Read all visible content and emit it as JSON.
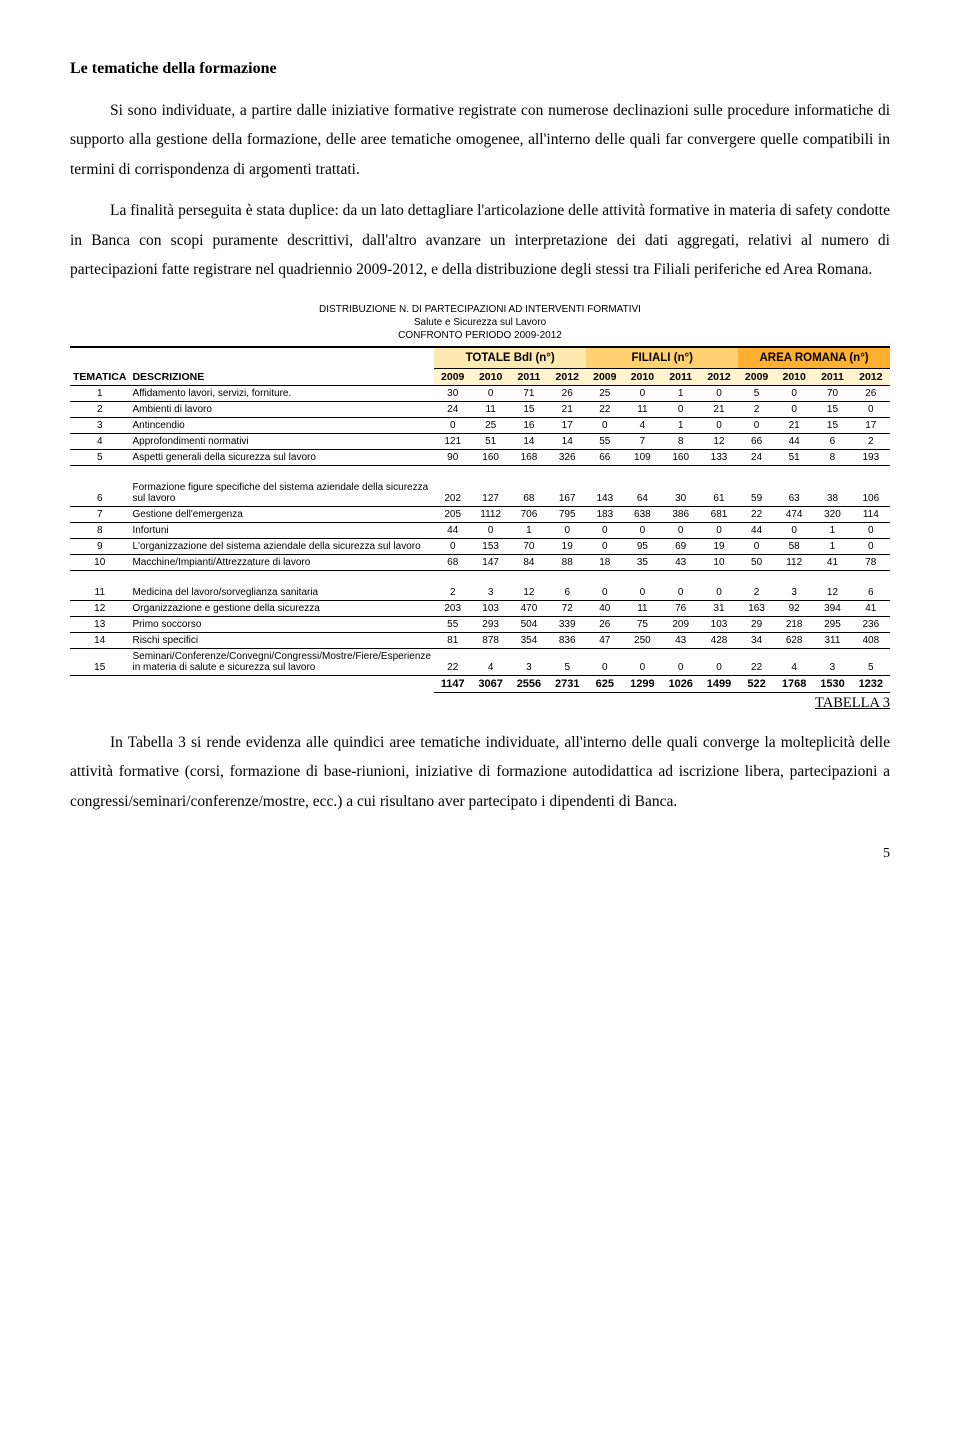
{
  "section_title": "Le tematiche della formazione",
  "para1": "Si sono individuate, a partire dalle iniziative formative registrate con numerose declinazioni sulle procedure informatiche di supporto alla gestione della formazione, delle aree tematiche omogenee, all'interno delle quali far convergere quelle compatibili in termini di corrispondenza di argomenti trattati.",
  "para2": "La finalità perseguita è stata duplice: da un lato dettagliare l'articolazione delle attività formative in materia di safety condotte in Banca con scopi puramente descrittivi, dall'altro avanzare un interpretazione dei dati aggregati, relativi al numero di partecipazioni fatte registrare nel quadriennio 2009-2012, e della distribuzione degli stessi tra Filiali periferiche ed Area Romana.",
  "caption_line1": "DISTRIBUZIONE N. DI PARTECIPAZIONI AD INTERVENTI FORMATIVI",
  "caption_line2": "Salute e Sicurezza sul Lavoro",
  "caption_line3": "CONFRONTO PERIODO 2009-2012",
  "group_headers": [
    "TOTALE BdI (n°)",
    "FILIALI (n°)",
    "AREA ROMANA (n°)"
  ],
  "col_tematica": "TEMATICA",
  "col_descrizione": "DESCRIZIONE",
  "years": [
    "2009",
    "2010",
    "2011",
    "2012"
  ],
  "colors": {
    "group_bg": [
      "#ffe9b0",
      "#ffd070",
      "#ffb030"
    ],
    "year_bg": "#fff3d0"
  },
  "rows_a": [
    {
      "n": "1",
      "desc": "Affidamento lavori, servizi, forniture.",
      "vals": [
        "30",
        "0",
        "71",
        "26",
        "25",
        "0",
        "1",
        "0",
        "5",
        "0",
        "70",
        "26"
      ]
    },
    {
      "n": "2",
      "desc": "Ambienti di lavoro",
      "vals": [
        "24",
        "11",
        "15",
        "21",
        "22",
        "11",
        "0",
        "21",
        "2",
        "0",
        "15",
        "0"
      ]
    },
    {
      "n": "3",
      "desc": "Antincendio",
      "vals": [
        "0",
        "25",
        "16",
        "17",
        "0",
        "4",
        "1",
        "0",
        "0",
        "21",
        "15",
        "17"
      ]
    },
    {
      "n": "4",
      "desc": "Approfondimenti normativi",
      "vals": [
        "121",
        "51",
        "14",
        "14",
        "55",
        "7",
        "8",
        "12",
        "66",
        "44",
        "6",
        "2"
      ]
    },
    {
      "n": "5",
      "desc": "Aspetti generali della sicurezza sul lavoro",
      "vals": [
        "90",
        "160",
        "168",
        "326",
        "66",
        "109",
        "160",
        "133",
        "24",
        "51",
        "8",
        "193"
      ]
    }
  ],
  "rows_b": [
    {
      "n": "6",
      "desc": "Formazione figure specifiche del sistema aziendale della sicurezza sul lavoro",
      "vals": [
        "202",
        "127",
        "68",
        "167",
        "143",
        "64",
        "30",
        "61",
        "59",
        "63",
        "38",
        "106"
      ]
    },
    {
      "n": "7",
      "desc": "Gestione dell'emergenza",
      "vals": [
        "205",
        "1112",
        "706",
        "795",
        "183",
        "638",
        "386",
        "681",
        "22",
        "474",
        "320",
        "114"
      ]
    },
    {
      "n": "8",
      "desc": "Infortuni",
      "vals": [
        "44",
        "0",
        "1",
        "0",
        "0",
        "0",
        "0",
        "0",
        "44",
        "0",
        "1",
        "0"
      ]
    },
    {
      "n": "9",
      "desc": "L'organizzazione del sistema aziendale della sicurezza sul lavoro",
      "vals": [
        "0",
        "153",
        "70",
        "19",
        "0",
        "95",
        "69",
        "19",
        "0",
        "58",
        "1",
        "0"
      ]
    },
    {
      "n": "10",
      "desc": "Macchine/Impianti/Attrezzature di lavoro",
      "vals": [
        "68",
        "147",
        "84",
        "88",
        "18",
        "35",
        "43",
        "10",
        "50",
        "112",
        "41",
        "78"
      ]
    }
  ],
  "rows_c": [
    {
      "n": "11",
      "desc": "Medicina del lavoro/sorveglianza sanitaria",
      "vals": [
        "2",
        "3",
        "12",
        "6",
        "0",
        "0",
        "0",
        "0",
        "2",
        "3",
        "12",
        "6"
      ]
    },
    {
      "n": "12",
      "desc": "Organizzazione e gestione della sicurezza",
      "vals": [
        "203",
        "103",
        "470",
        "72",
        "40",
        "11",
        "76",
        "31",
        "163",
        "92",
        "394",
        "41"
      ]
    },
    {
      "n": "13",
      "desc": "Primo soccorso",
      "vals": [
        "55",
        "293",
        "504",
        "339",
        "26",
        "75",
        "209",
        "103",
        "29",
        "218",
        "295",
        "236"
      ]
    },
    {
      "n": "14",
      "desc": "Rischi specifici",
      "vals": [
        "81",
        "878",
        "354",
        "836",
        "47",
        "250",
        "43",
        "428",
        "34",
        "628",
        "311",
        "408"
      ]
    },
    {
      "n": "15",
      "desc": "Seminari/Conferenze/Convegni/Congressi/Mostre/Fiere/Esperienze in materia di salute e sicurezza sul lavoro",
      "vals": [
        "22",
        "4",
        "3",
        "5",
        "0",
        "0",
        "0",
        "0",
        "22",
        "4",
        "3",
        "5"
      ]
    }
  ],
  "totals": [
    "1147",
    "3067",
    "2556",
    "2731",
    "625",
    "1299",
    "1026",
    "1499",
    "522",
    "1768",
    "1530",
    "1232"
  ],
  "tabella_label": "TABELLA 3",
  "para3": "In Tabella 3 si rende evidenza alle quindici aree tematiche individuate, all'interno delle quali converge la molteplicità delle attività formative (corsi, formazione di base-riunioni, iniziative di formazione autodidattica ad iscrizione libera, partecipazioni a congressi/seminari/conferenze/mostre, ecc.) a cui risultano aver partecipato i dipendenti di Banca.",
  "page_num": "5"
}
